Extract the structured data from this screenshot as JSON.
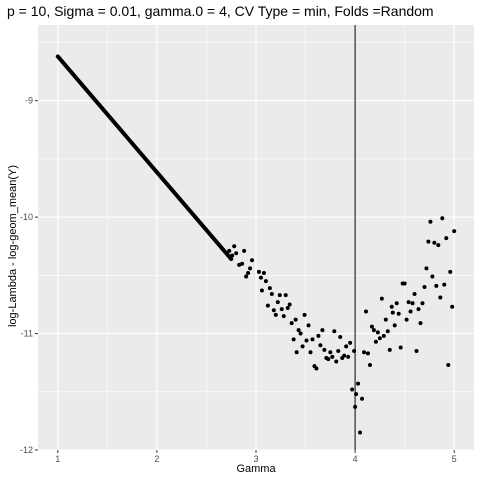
{
  "chart_data": {
    "type": "scatter",
    "title": "p = 10, Sigma = 0.01, gamma.0 = 4, CV Type = min, Folds =Random",
    "xlabel": "Gamma",
    "ylabel": "log-Lambda - log-geom_mean(Y)",
    "xlim": [
      0.8,
      5.2
    ],
    "ylim": [
      -12,
      -8.35
    ],
    "x_ticks": [
      1,
      2,
      3,
      4,
      5
    ],
    "x_tick_labels": [
      "1",
      "2",
      "3",
      "4",
      "5"
    ],
    "y_ticks": [
      -12,
      -11,
      -10,
      -9
    ],
    "y_tick_labels": [
      "-12",
      "-11",
      "-10",
      "-9"
    ],
    "vline_x": 4,
    "grid": true,
    "background_color": "#ebebeb",
    "grid_color": "#ffffff",
    "point_color": "#000000",
    "dense_line": {
      "x_start": 1.0,
      "y_start": -8.62,
      "x_end": 2.75,
      "y_end": -10.36
    },
    "points": [
      [
        2.73,
        -10.29
      ],
      [
        2.76,
        -10.33
      ],
      [
        2.78,
        -10.25
      ],
      [
        2.8,
        -10.31
      ],
      [
        2.83,
        -10.41
      ],
      [
        2.86,
        -10.4
      ],
      [
        2.88,
        -10.29
      ],
      [
        2.9,
        -10.51
      ],
      [
        2.92,
        -10.48
      ],
      [
        2.94,
        -10.44
      ],
      [
        2.96,
        -10.37
      ],
      [
        3.03,
        -10.47
      ],
      [
        3.05,
        -10.52
      ],
      [
        3.06,
        -10.63
      ],
      [
        3.08,
        -10.48
      ],
      [
        3.1,
        -10.55
      ],
      [
        3.12,
        -10.76
      ],
      [
        3.14,
        -10.61
      ],
      [
        3.16,
        -10.66
      ],
      [
        3.18,
        -10.8
      ],
      [
        3.2,
        -10.84
      ],
      [
        3.22,
        -10.73
      ],
      [
        3.24,
        -10.67
      ],
      [
        3.26,
        -10.79
      ],
      [
        3.28,
        -10.85
      ],
      [
        3.3,
        -10.67
      ],
      [
        3.32,
        -10.78
      ],
      [
        3.34,
        -10.75
      ],
      [
        3.36,
        -10.91
      ],
      [
        3.38,
        -11.05
      ],
      [
        3.4,
        -10.88
      ],
      [
        3.41,
        -11.16
      ],
      [
        3.43,
        -10.97
      ],
      [
        3.45,
        -11.0
      ],
      [
        3.47,
        -11.11
      ],
      [
        3.49,
        -10.84
      ],
      [
        3.51,
        -11.06
      ],
      [
        3.53,
        -10.93
      ],
      [
        3.55,
        -11.16
      ],
      [
        3.57,
        -11.05
      ],
      [
        3.59,
        -11.28
      ],
      [
        3.61,
        -11.3
      ],
      [
        3.63,
        -11.02
      ],
      [
        3.65,
        -11.1
      ],
      [
        3.67,
        -10.97
      ],
      [
        3.69,
        -11.14
      ],
      [
        3.71,
        -11.21
      ],
      [
        3.73,
        -11.22
      ],
      [
        3.75,
        -11.16
      ],
      [
        3.77,
        -11.2
      ],
      [
        3.79,
        -10.98
      ],
      [
        3.81,
        -11.24
      ],
      [
        3.83,
        -11.15
      ],
      [
        3.85,
        -11.03
      ],
      [
        3.87,
        -11.21
      ],
      [
        3.89,
        -11.19
      ],
      [
        3.91,
        -11.11
      ],
      [
        3.93,
        -11.2
      ],
      [
        3.95,
        -11.08
      ],
      [
        3.97,
        -11.48
      ],
      [
        3.99,
        -11.15
      ],
      [
        4.0,
        -11.63
      ],
      [
        4.01,
        -11.52
      ],
      [
        4.03,
        -11.43
      ],
      [
        4.05,
        -11.85
      ],
      [
        4.07,
        -11.56
      ],
      [
        4.09,
        -11.16
      ],
      [
        4.11,
        -10.81
      ],
      [
        4.13,
        -11.17
      ],
      [
        4.15,
        -11.27
      ],
      [
        4.17,
        -10.94
      ],
      [
        4.19,
        -10.97
      ],
      [
        4.21,
        -11.07
      ],
      [
        4.23,
        -10.99
      ],
      [
        4.25,
        -11.04
      ],
      [
        4.27,
        -10.7
      ],
      [
        4.29,
        -11.02
      ],
      [
        4.31,
        -10.88
      ],
      [
        4.33,
        -10.98
      ],
      [
        4.35,
        -11.14
      ],
      [
        4.37,
        -10.77
      ],
      [
        4.38,
        -10.82
      ],
      [
        4.4,
        -10.93
      ],
      [
        4.42,
        -10.74
      ],
      [
        4.44,
        -10.83
      ],
      [
        4.46,
        -11.12
      ],
      [
        4.48,
        -10.57
      ],
      [
        4.5,
        -10.57
      ],
      [
        4.52,
        -10.88
      ],
      [
        4.54,
        -10.73
      ],
      [
        4.56,
        -10.81
      ],
      [
        4.58,
        -10.74
      ],
      [
        4.6,
        -10.66
      ],
      [
        4.62,
        -11.15
      ],
      [
        4.64,
        -10.79
      ],
      [
        4.66,
        -10.91
      ],
      [
        4.68,
        -10.74
      ],
      [
        4.7,
        -10.6
      ],
      [
        4.72,
        -10.44
      ],
      [
        4.74,
        -10.21
      ],
      [
        4.76,
        -10.04
      ],
      [
        4.78,
        -10.51
      ],
      [
        4.8,
        -10.22
      ],
      [
        4.82,
        -10.59
      ],
      [
        4.84,
        -10.24
      ],
      [
        4.86,
        -10.69
      ],
      [
        4.88,
        -10.01
      ],
      [
        4.9,
        -10.58
      ],
      [
        4.92,
        -10.18
      ],
      [
        4.94,
        -11.27
      ],
      [
        4.96,
        -10.47
      ],
      [
        4.98,
        -10.77
      ],
      [
        5.0,
        -10.12
      ]
    ]
  }
}
